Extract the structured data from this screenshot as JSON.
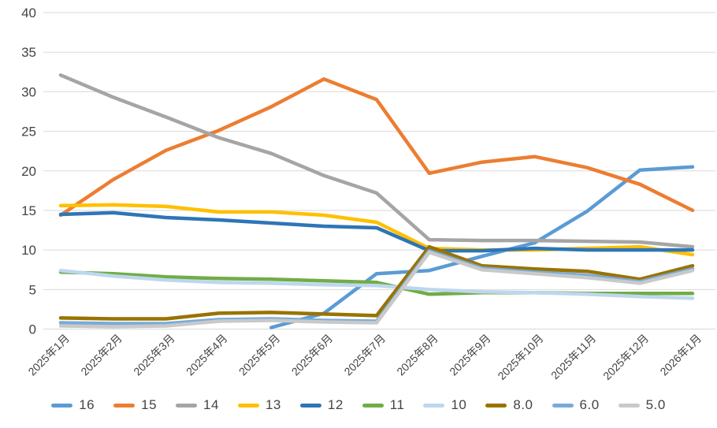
{
  "chart_data": {
    "type": "line",
    "title": "",
    "xlabel": "",
    "ylabel": "",
    "x_labels": [
      "2025年1月",
      "2025年2月",
      "2025年3月",
      "2025年4月",
      "2025年5月",
      "2025年6月",
      "2025年7月",
      "2025年8月",
      "2025年9月",
      "2025年10月",
      "2025年11月",
      "2025年12月",
      "2026年1月"
    ],
    "y_ticks": [
      0,
      5,
      10,
      15,
      20,
      25,
      30,
      35,
      40
    ],
    "ylim": [
      0,
      40
    ],
    "grid": true,
    "legend_position": "bottom",
    "series": [
      {
        "name": "16",
        "color": "#5B9BD5",
        "values": [
          null,
          null,
          null,
          null,
          0.2,
          2.0,
          7.0,
          7.4,
          9.2,
          10.9,
          14.9,
          20.1,
          20.5
        ]
      },
      {
        "name": "15",
        "color": "#ED7D31",
        "values": [
          14.4,
          18.9,
          22.6,
          25.1,
          28.1,
          31.6,
          29.0,
          19.7,
          21.1,
          21.8,
          20.4,
          18.3,
          15.0
        ]
      },
      {
        "name": "14",
        "color": "#A5A5A5",
        "values": [
          32.1,
          29.3,
          26.8,
          24.2,
          22.2,
          19.4,
          17.2,
          11.3,
          11.2,
          11.2,
          11.1,
          11.0,
          10.4
        ]
      },
      {
        "name": "13",
        "color": "#FFC000",
        "values": [
          15.6,
          15.7,
          15.5,
          14.8,
          14.8,
          14.4,
          13.5,
          10.2,
          10.0,
          10.0,
          10.2,
          10.4,
          9.4
        ]
      },
      {
        "name": "12",
        "color": "#2E75B6",
        "values": [
          14.5,
          14.7,
          14.1,
          13.8,
          13.4,
          13.0,
          12.8,
          9.9,
          9.9,
          10.2,
          10.0,
          10.0,
          10.0
        ]
      },
      {
        "name": "11",
        "color": "#70AD47",
        "values": [
          7.2,
          7.0,
          6.6,
          6.4,
          6.3,
          6.1,
          5.9,
          4.4,
          4.6,
          4.6,
          4.5,
          4.5,
          4.5
        ]
      },
      {
        "name": "10",
        "color": "#BDD7EE",
        "values": [
          7.4,
          6.7,
          6.2,
          5.9,
          5.8,
          5.6,
          5.5,
          5.0,
          4.7,
          4.6,
          4.4,
          4.1,
          3.9
        ]
      },
      {
        "name": "8.0",
        "color": "#997300",
        "values": [
          1.4,
          1.3,
          1.3,
          2.0,
          2.1,
          1.9,
          1.7,
          10.4,
          8.0,
          7.6,
          7.3,
          6.3,
          8.0
        ]
      },
      {
        "name": "6.0",
        "color": "#79ABD9",
        "values": [
          0.8,
          0.7,
          0.7,
          1.2,
          1.3,
          1.1,
          1.0,
          9.9,
          7.7,
          7.2,
          6.8,
          6.0,
          7.6
        ]
      },
      {
        "name": "5.0",
        "color": "#C9C9C9",
        "values": [
          0.4,
          0.3,
          0.4,
          1.0,
          1.1,
          0.9,
          0.8,
          9.7,
          7.5,
          7.0,
          6.5,
          5.8,
          7.4
        ]
      }
    ]
  },
  "colors": {
    "grid": "#D9D9D9",
    "axis_text": "#444444",
    "background": "#FFFFFF"
  }
}
